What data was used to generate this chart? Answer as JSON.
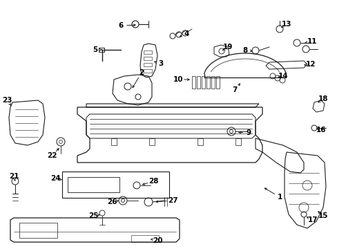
{
  "background": "#ffffff",
  "line_color": "#1a1a1a",
  "text_color": "#000000",
  "fig_width": 4.89,
  "fig_height": 3.6,
  "dpi": 100
}
